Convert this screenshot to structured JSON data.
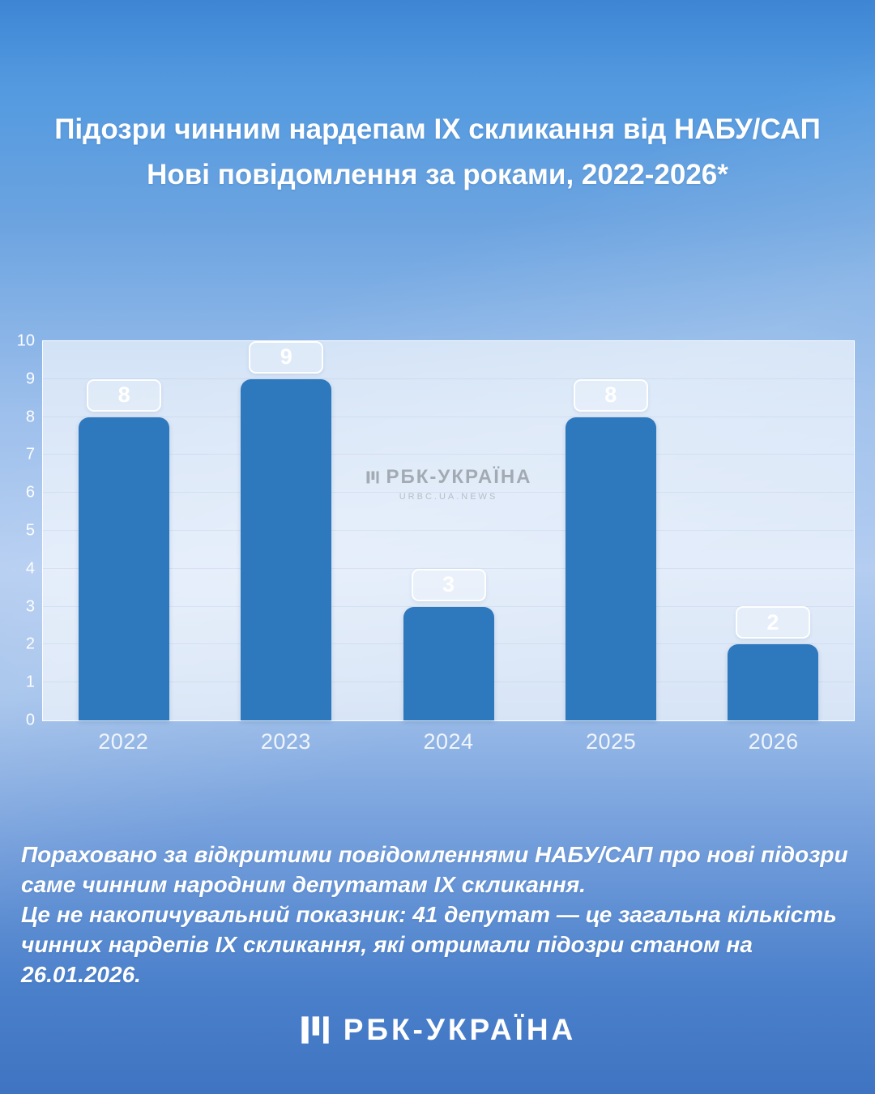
{
  "chart_data": {
    "type": "bar",
    "title": "Підозри чинним нардепам IX скликання від НАБУ/САП",
    "subtitle": "Нові повідомлення за роками, 2022-2026*",
    "categories": [
      "2022",
      "2023",
      "2024",
      "2025",
      "2026"
    ],
    "values": [
      8,
      9,
      3,
      8,
      2
    ],
    "xlabel": "",
    "ylabel": "",
    "ylim": [
      0,
      10
    ],
    "ytick_step": 1,
    "grid": false,
    "legend": "none",
    "bar_color": "#2e78bd",
    "value_labels": true
  },
  "watermark": {
    "text": "РБК-УКРАЇНА",
    "subtext": "urbc.ua.news"
  },
  "footnote": {
    "lines": [
      "Пораховано за відкритими повідомленнями НАБУ/САП про нові підозри",
      "саме чинним народним депутатам IX скликання.",
      "Це не накопичувальний показник: 41 депутат — це загальна кількість",
      "чинних нардепів IX скликання, які отримали підозри станом на 26.01.2026."
    ]
  },
  "footer": {
    "brand": "РБК-УКРАЇНА"
  },
  "colors": {
    "bar": "#2e78bd",
    "background_top": "#3e86d4",
    "background_mid": "#b4cdf1",
    "background_bottom": "#3f74c2",
    "plot_background": "#f3f7fc",
    "text": "#ffffff"
  }
}
